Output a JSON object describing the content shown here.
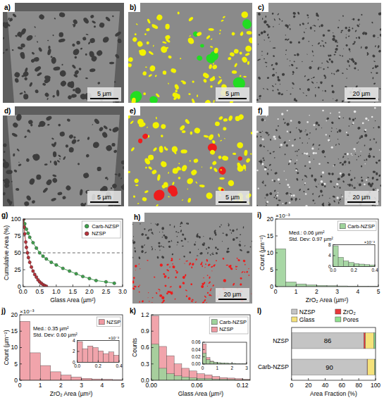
{
  "images": [
    {
      "panel_label": "a)",
      "scale_bar": "5 µm",
      "overlay_colors": []
    },
    {
      "panel_label": "b)",
      "scale_bar": "5 µm",
      "overlay_colors": [
        "#f2f200",
        "#22dd22"
      ]
    },
    {
      "panel_label": "c)",
      "scale_bar": "20 µm",
      "overlay_colors": []
    },
    {
      "panel_label": "d)",
      "scale_bar": "5 µm",
      "overlay_colors": []
    },
    {
      "panel_label": "e)",
      "scale_bar": "5 µm",
      "overlay_colors": [
        "#f2f200",
        "#ee1c1c"
      ]
    },
    {
      "panel_label": "f)",
      "scale_bar": "20 µm",
      "overlay_colors": []
    },
    {
      "panel_label": "h)",
      "scale_bar": "20 µm",
      "overlay_colors": [
        "#ee1c1c"
      ]
    }
  ],
  "chart_data": [
    {
      "panel_label": "g)",
      "type": "scatter",
      "xlabel": "Glass Area (µm²)",
      "ylabel": "Cumulative Area (%)",
      "xlim": [
        0,
        3
      ],
      "xticks": [
        {
          "value": 0,
          "label": "0.0"
        },
        0.5,
        {
          "value": 1,
          "label": "1.0"
        },
        1.5,
        {
          "value": 2,
          "label": "2.0"
        },
        2.5,
        {
          "value": 3,
          "label": "3.0"
        }
      ],
      "ylim": [
        0,
        100
      ],
      "yticks": [
        0,
        25,
        50,
        75,
        100
      ],
      "hline": 50,
      "legend": "upper right",
      "marker": "circle",
      "series": [
        {
          "name": "Carb-NZSP",
          "color": "#3fa34d",
          "x": [
            0.02,
            0.05,
            0.1,
            0.15,
            0.2,
            0.3,
            0.4,
            0.5,
            0.6,
            0.7,
            0.85,
            1.0,
            1.2,
            1.4,
            1.6,
            1.8,
            2.0,
            2.2,
            2.5,
            2.75
          ],
          "values": [
            100,
            93,
            85,
            79,
            73,
            65,
            57,
            50,
            45,
            41,
            36,
            32,
            27,
            23,
            19,
            15,
            12,
            9,
            7,
            5
          ]
        },
        {
          "name": "NZSP",
          "color": "#b8323a",
          "x": [
            0.01,
            0.03,
            0.05,
            0.08,
            0.1,
            0.13,
            0.16,
            0.2,
            0.25,
            0.3,
            0.35,
            0.4,
            0.45,
            0.5,
            0.55,
            0.6,
            0.65,
            0.7
          ],
          "values": [
            100,
            88,
            78,
            66,
            58,
            50,
            43,
            36,
            29,
            23,
            18,
            14,
            10,
            7,
            5,
            3,
            1.5,
            0.5
          ]
        }
      ]
    },
    {
      "panel_label": "i)",
      "type": "histogram",
      "xlabel": "ZrO₂ Area (µm²)",
      "ylabel": "Count (µm⁻²)",
      "y_multiplier": "×10⁻³",
      "xlim": [
        0,
        5
      ],
      "xticks": [
        0,
        1,
        2,
        3,
        4,
        5
      ],
      "ylim": [
        0,
        20
      ],
      "yticks": [
        0,
        5,
        10,
        15,
        20
      ],
      "legend": "upper right",
      "bins": [
        0,
        0.5,
        1,
        1.5,
        2,
        2.5,
        3,
        3.5,
        4,
        4.5,
        5
      ],
      "series": [
        {
          "name": "Carb-NZSP",
          "color": "#9fd39b",
          "values": [
            11.2,
            1.4,
            0.8,
            0.5,
            0.35,
            0.25,
            0.2,
            0.15,
            0.1,
            0.08
          ]
        }
      ],
      "annotations": [
        "Med.: 0.06 µm²",
        "Std. Dev: 0.97 µm²"
      ],
      "inset": {
        "type": "histogram",
        "y_multiplier": "×10⁻³",
        "xlim": [
          0,
          0.4
        ],
        "xticks": [
          {
            "value": 0,
            "label": "0.0"
          },
          0.2,
          0.4
        ],
        "ylim": [
          0,
          8
        ],
        "yticks": [
          0,
          4,
          8
        ],
        "bins": [
          0,
          0.05,
          0.1,
          0.15,
          0.2,
          0.25,
          0.3,
          0.35,
          0.4
        ],
        "series": [
          {
            "values": [
              7.6,
              3.4,
              2.1,
              1.5,
              1.1,
              0.9,
              0.7,
              0.6
            ]
          }
        ]
      }
    },
    {
      "panel_label": "j)",
      "type": "histogram",
      "xlabel": "ZrO₂ Area (µm²)",
      "ylabel": "Count (µm⁻²)",
      "y_multiplier": "×10⁻³",
      "xlim": [
        0,
        5
      ],
      "xticks": [
        0,
        1,
        2,
        3,
        4,
        5
      ],
      "ylim": [
        0,
        20
      ],
      "yticks": [
        0,
        5,
        10,
        15,
        20
      ],
      "legend": "upper right",
      "bins": [
        0,
        0.5,
        1,
        1.5,
        2,
        2.5,
        3,
        3.5,
        4,
        4.5,
        5
      ],
      "series": [
        {
          "name": "NZSP",
          "color": "#ef9aa2",
          "values": [
            18,
            8.4,
            4.5,
            2.6,
            1.6,
            1.0,
            0.6,
            0.4,
            0.3,
            0.2
          ]
        }
      ],
      "annotations": [
        "Med.: 0.35 µm²",
        "Std. Dev: 0.60 µm²"
      ],
      "inset": {
        "type": "histogram",
        "y_multiplier": "×10⁻³",
        "xlim": [
          0,
          0.4
        ],
        "xticks": [
          {
            "value": 0,
            "label": "0.0"
          },
          0.2,
          0.4
        ],
        "ylim": [
          0,
          4
        ],
        "yticks": [
          0,
          2,
          4
        ],
        "bins": [
          0,
          0.05,
          0.1,
          0.15,
          0.2,
          0.25,
          0.3,
          0.35,
          0.4
        ],
        "series": [
          {
            "values": [
              3.8,
              2.5,
              3.0,
              2.7,
              2.1,
              1.6,
              1.9,
              1.3
            ]
          }
        ]
      }
    },
    {
      "panel_label": "k)",
      "type": "histogram",
      "xlabel": "Glass Area (µm²)",
      "ylabel": "Counts",
      "xlim": [
        0,
        0.13
      ],
      "xticks": [
        {
          "value": 0,
          "label": "0.00"
        },
        0.06,
        0.12
      ],
      "ylim": [
        0,
        1.2
      ],
      "yticks": [
        {
          "value": 0,
          "label": "0.0"
        },
        0.3,
        0.6,
        0.9,
        1.2
      ],
      "legend": "upper right",
      "bins": [
        0,
        0.01,
        0.02,
        0.03,
        0.04,
        0.05,
        0.06,
        0.07,
        0.08,
        0.09,
        0.1,
        0.11,
        0.12,
        0.13
      ],
      "series": [
        {
          "name": "Carb-NZSP",
          "color": "#9fd39b",
          "values": [
            0.66,
            0.22,
            0.12,
            0.08,
            0.06,
            0.045,
            0.035,
            0.03,
            0.02,
            0.02,
            0.015,
            0.01,
            0.01
          ]
        },
        {
          "name": "NZSP",
          "color": "#ef9aa2",
          "values": [
            1.18,
            0.62,
            0.45,
            0.3,
            0.22,
            0.17,
            0.12,
            0.1,
            0.07,
            0.05,
            0.04,
            0.03,
            0.02
          ]
        }
      ],
      "inset": {
        "type": "histogram",
        "xlim": [
          0,
          3
        ],
        "xticks": [
          0,
          1,
          2,
          3
        ],
        "ylim": [
          0,
          0.06
        ],
        "yticks": [
          {
            "value": 0,
            "label": "0.00"
          },
          0.02,
          0.04,
          0.06
        ],
        "bins": [
          0,
          0.25,
          0.5,
          0.75,
          1,
          1.25,
          1.5,
          1.75,
          2,
          2.25,
          2.5,
          2.75,
          3
        ],
        "series": [
          {
            "values": [
              0.03,
              0.012,
              0.007,
              0.005,
              0.004,
              0.003,
              0.003,
              0.002,
              0.002,
              0.0015,
              0.001,
              0.001
            ]
          },
          {
            "values": [
              0.055,
              0.018,
              0.008,
              0.004,
              0.003,
              0.002,
              0.0015,
              0.001,
              0.0008,
              0,
              0,
              0
            ]
          }
        ]
      }
    },
    {
      "panel_label": "l)",
      "type": "bar",
      "orientation": "horizontal",
      "stacked": true,
      "legend": "top",
      "categories": [
        "NZSP",
        "Carb-NZSP"
      ],
      "xlabel": "Area Fraction (%)",
      "xlim": [
        0,
        100
      ],
      "xticks": [
        0,
        20,
        40,
        60,
        80,
        100
      ],
      "series": [
        {
          "name": "NZSP",
          "color": "#c4c4c4",
          "values": [
            86,
            90
          ],
          "data_labels": true
        },
        {
          "name": "ZrO₂",
          "color": "#e8373a",
          "values": [
            2,
            0.5
          ]
        },
        {
          "name": "Glass",
          "color": "#f5e27a",
          "values": [
            10,
            8.5
          ]
        },
        {
          "name": "Pores",
          "color": "#8ee08e",
          "values": [
            2,
            1
          ]
        }
      ]
    }
  ]
}
